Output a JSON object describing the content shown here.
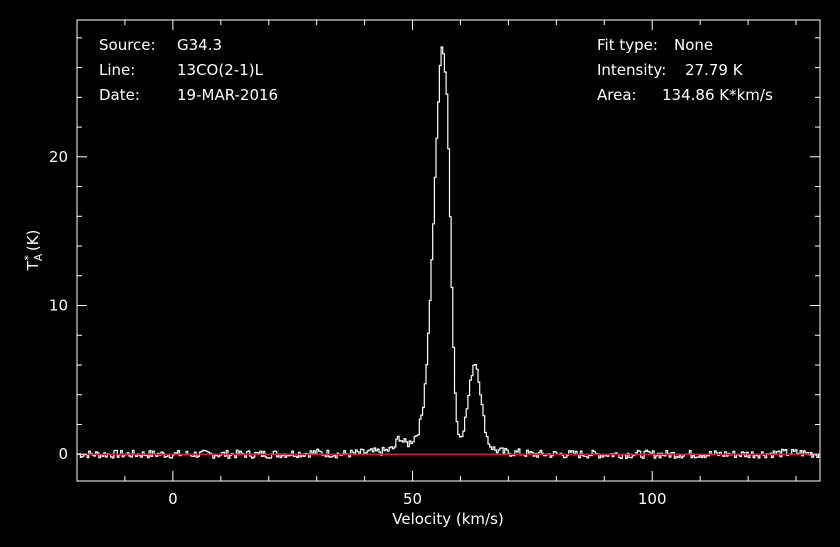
{
  "info": {
    "left": [
      {
        "key": "Source:",
        "value": "G34.3"
      },
      {
        "key": "Line:",
        "value": "13CO(2-1)L"
      },
      {
        "key": "Date:",
        "value": "19-MAR-2016"
      }
    ],
    "right": [
      {
        "key": "Fit type:",
        "value": "None"
      },
      {
        "key": "Intensity:",
        "value": "27.79 K"
      },
      {
        "key": "Area:",
        "value": "134.86 K*km/s"
      }
    ]
  },
  "chart_data": {
    "type": "line",
    "xlabel": "Velocity (km/s)",
    "ylabel_main": "T",
    "ylabel_sup": "*",
    "ylabel_sub": "A",
    "ylabel_unit": "(K)",
    "xlim": [
      -20,
      135
    ],
    "ylim": [
      -1.8,
      29.2
    ],
    "xticks": [
      0,
      50,
      100
    ],
    "yticks": [
      0,
      10,
      20
    ],
    "grid": false,
    "colors": {
      "background": "#000000",
      "frame": "#ffffff",
      "spectrum": "#ffffff",
      "baseline": "#cc2222"
    },
    "baseline": 0,
    "series": [
      {
        "x": [
          -20,
          0,
          20,
          30,
          35,
          40,
          44,
          46,
          47,
          48,
          49,
          50,
          51,
          52,
          53,
          54,
          55,
          55.5,
          56,
          56.5,
          57,
          57.5,
          58,
          58.5,
          59,
          59.5,
          60,
          60.5,
          61,
          61.5,
          62,
          62.5,
          63,
          63.5,
          64,
          64.5,
          65,
          65.5,
          66,
          67,
          68,
          70,
          72,
          75,
          80,
          90,
          100,
          110,
          120,
          130,
          135
        ],
        "y": [
          0,
          0,
          0,
          0.1,
          0,
          0.1,
          0.2,
          0.4,
          1.2,
          0.8,
          0.7,
          1.0,
          1.5,
          3.0,
          7.0,
          14.0,
          22.0,
          25.5,
          27.79,
          26.5,
          24.0,
          19.0,
          12.0,
          6.0,
          2.5,
          1.2,
          1.3,
          1.8,
          2.6,
          3.8,
          5.0,
          6.0,
          6.2,
          5.5,
          4.2,
          2.8,
          1.8,
          1.0,
          0.6,
          0.3,
          0.2,
          0.1,
          0.1,
          0,
          0,
          0,
          0,
          0,
          0,
          0.1,
          0
        ]
      }
    ]
  }
}
